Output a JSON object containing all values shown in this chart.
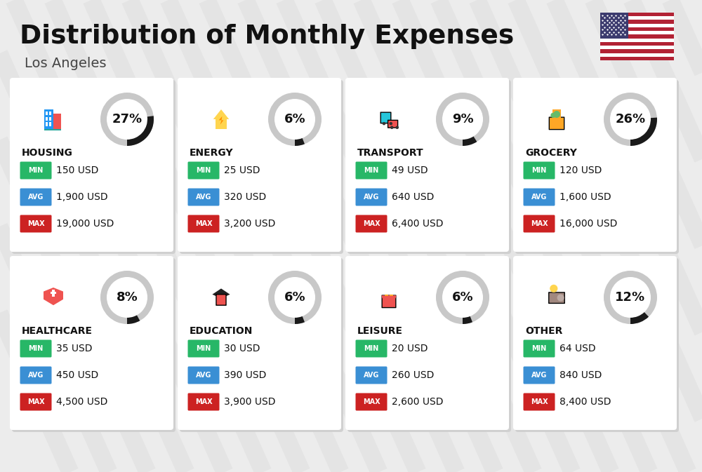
{
  "title": "Distribution of Monthly Expenses",
  "subtitle": "Los Angeles",
  "background_color": "#ececec",
  "categories": [
    {
      "name": "HOUSING",
      "pct": 27,
      "min_val": "150 USD",
      "avg_val": "1,900 USD",
      "max_val": "19,000 USD",
      "row": 0,
      "col": 0
    },
    {
      "name": "ENERGY",
      "pct": 6,
      "min_val": "25 USD",
      "avg_val": "320 USD",
      "max_val": "3,200 USD",
      "row": 0,
      "col": 1
    },
    {
      "name": "TRANSPORT",
      "pct": 9,
      "min_val": "49 USD",
      "avg_val": "640 USD",
      "max_val": "6,400 USD",
      "row": 0,
      "col": 2
    },
    {
      "name": "GROCERY",
      "pct": 26,
      "min_val": "120 USD",
      "avg_val": "1,600 USD",
      "max_val": "16,000 USD",
      "row": 0,
      "col": 3
    },
    {
      "name": "HEALTHCARE",
      "pct": 8,
      "min_val": "35 USD",
      "avg_val": "450 USD",
      "max_val": "4,500 USD",
      "row": 1,
      "col": 0
    },
    {
      "name": "EDUCATION",
      "pct": 6,
      "min_val": "30 USD",
      "avg_val": "390 USD",
      "max_val": "3,900 USD",
      "row": 1,
      "col": 1
    },
    {
      "name": "LEISURE",
      "pct": 6,
      "min_val": "20 USD",
      "avg_val": "260 USD",
      "max_val": "2,600 USD",
      "row": 1,
      "col": 2
    },
    {
      "name": "OTHER",
      "pct": 12,
      "min_val": "64 USD",
      "avg_val": "840 USD",
      "max_val": "8,400 USD",
      "row": 1,
      "col": 3
    }
  ],
  "min_color": "#27b767",
  "avg_color": "#3a8fd4",
  "max_color": "#cc2222",
  "label_color": "#ffffff",
  "title_color": "#111111",
  "subtitle_color": "#444444",
  "card_color": "#ffffff",
  "arc_bg_color": "#c8c8c8",
  "arc_fg_color": "#1a1a1a",
  "name_color": "#111111",
  "card_shadow_color": "#d0d0d0",
  "diagonal_color": "#e4e4e4"
}
